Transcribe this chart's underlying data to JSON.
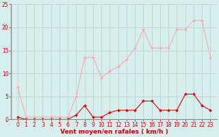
{
  "hours": [
    0,
    1,
    2,
    3,
    4,
    5,
    6,
    7,
    8,
    9,
    10,
    11,
    12,
    13,
    14,
    15,
    16,
    17,
    18,
    19,
    20,
    21,
    22,
    23
  ],
  "wind_avg": [
    0.5,
    0,
    0,
    0,
    0,
    0,
    0,
    1,
    3,
    0.5,
    0.5,
    1.5,
    2,
    2,
    2,
    4,
    4,
    2,
    2,
    2,
    5.5,
    5.5,
    3,
    2
  ],
  "wind_gust": [
    7,
    0.5,
    0.5,
    0.5,
    0.5,
    0.5,
    0.5,
    5,
    13.5,
    13.5,
    9,
    10.5,
    11.5,
    13,
    15.5,
    19.5,
    15.5,
    15.5,
    15.5,
    19.5,
    19.5,
    21.5,
    21.5,
    13.5
  ],
  "color_avg": "#dd0000",
  "color_gust": "#ffaaaa",
  "bg_color": "#d6eeee",
  "grid_color": "#bbcccc",
  "xlabel": "Vent moyen/en rafales ( km/h )",
  "ylim": [
    0,
    25
  ],
  "yticks": [
    0,
    5,
    10,
    15,
    20,
    25
  ],
  "axis_color": "#cc0000",
  "tick_fontsize": 5.5,
  "xlabel_fontsize": 6.5,
  "marker_size": 2.0,
  "line_width": 0.8
}
